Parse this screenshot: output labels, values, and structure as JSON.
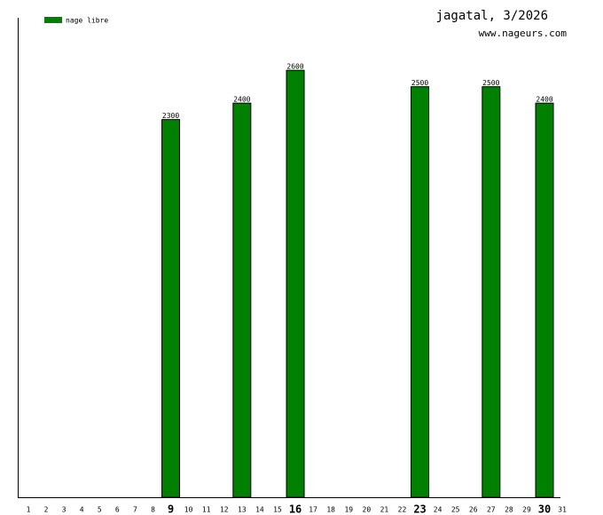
{
  "chart_data": {
    "type": "bar",
    "title": "jagatal, 3/2026",
    "subtitle": "www.nageurs.com",
    "categories": [
      "1",
      "2",
      "3",
      "4",
      "5",
      "6",
      "7",
      "8",
      "9",
      "10",
      "11",
      "12",
      "13",
      "14",
      "15",
      "16",
      "17",
      "18",
      "19",
      "20",
      "21",
      "22",
      "23",
      "24",
      "25",
      "26",
      "27",
      "28",
      "29",
      "30",
      "31"
    ],
    "bold_categories": [
      "9",
      "16",
      "23",
      "30"
    ],
    "series": [
      {
        "name": "nage libre",
        "color": "#008000",
        "values": [
          null,
          null,
          null,
          null,
          null,
          null,
          null,
          null,
          2300,
          null,
          null,
          null,
          2400,
          null,
          null,
          2600,
          null,
          null,
          null,
          null,
          null,
          null,
          2500,
          null,
          null,
          null,
          2500,
          null,
          null,
          2400,
          null
        ]
      }
    ],
    "ylim": [
      0,
      2920
    ]
  }
}
